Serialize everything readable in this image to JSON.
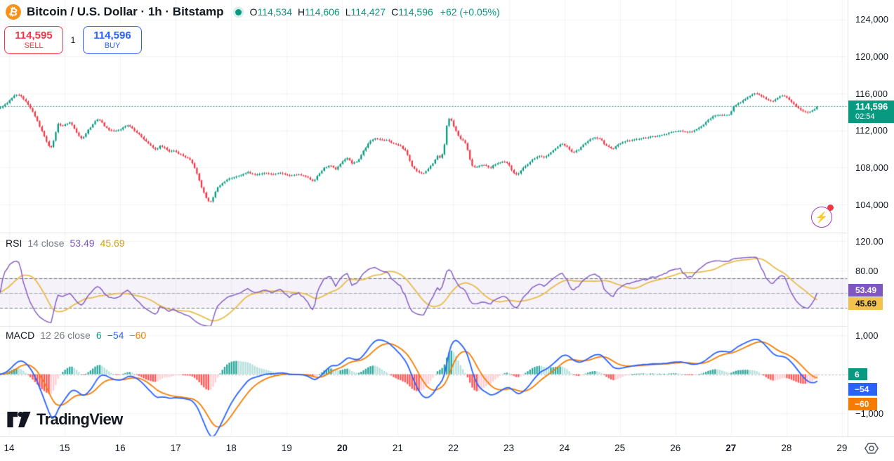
{
  "header": {
    "symbol_title": "Bitcoin / U.S. Dollar · 1h · Bitstamp",
    "ohlc": {
      "o_label": "O",
      "o": "114,534",
      "h_label": "H",
      "h": "114,606",
      "l_label": "L",
      "l": "114,427",
      "c_label": "C",
      "c": "114,596",
      "change": "+62 (+0.05%)"
    },
    "sell_button": {
      "price": "114,595",
      "label": "SELL"
    },
    "spread": "1",
    "buy_button": {
      "price": "114,596",
      "label": "BUY"
    }
  },
  "price_axis": {
    "labels": [
      {
        "value": 124000,
        "text": "124,000"
      },
      {
        "value": 120000,
        "text": "120,000"
      },
      {
        "value": 116000,
        "text": "116,000"
      },
      {
        "value": 112000,
        "text": "112,000"
      },
      {
        "value": 108000,
        "text": "108,000"
      },
      {
        "value": 104000,
        "text": "104,000"
      }
    ],
    "current_badge": {
      "price": "114,596",
      "countdown": "02:54"
    }
  },
  "time_axis": {
    "labels": [
      {
        "day": 14,
        "text": "14",
        "bold": false
      },
      {
        "day": 15,
        "text": "15",
        "bold": false
      },
      {
        "day": 16,
        "text": "16",
        "bold": false
      },
      {
        "day": 17,
        "text": "17",
        "bold": false
      },
      {
        "day": 18,
        "text": "18",
        "bold": false
      },
      {
        "day": 19,
        "text": "19",
        "bold": false
      },
      {
        "day": 20,
        "text": "20",
        "bold": true
      },
      {
        "day": 21,
        "text": "21",
        "bold": false
      },
      {
        "day": 22,
        "text": "22",
        "bold": false
      },
      {
        "day": 23,
        "text": "23",
        "bold": false
      },
      {
        "day": 24,
        "text": "24",
        "bold": false
      },
      {
        "day": 25,
        "text": "25",
        "bold": false
      },
      {
        "day": 26,
        "text": "26",
        "bold": false
      },
      {
        "day": 27,
        "text": "27",
        "bold": true
      },
      {
        "day": 28,
        "text": "28",
        "bold": false
      },
      {
        "day": 29,
        "text": "29",
        "bold": false
      }
    ]
  },
  "rsi_panel": {
    "title": "RSI",
    "params": "14 close",
    "value_main": "53.49",
    "value_ma": "45.69",
    "axis_labels": [
      {
        "value": 120,
        "text": "120.00"
      },
      {
        "value": 80,
        "text": "80.00"
      }
    ]
  },
  "macd_panel": {
    "title": "MACD",
    "params": "12 26 close",
    "hist_value": "6",
    "macd_value": "−54",
    "signal_value": "−60",
    "axis_labels": [
      {
        "value": 1000,
        "text": "1,000"
      },
      {
        "value": -1000,
        "text": "−1,000"
      }
    ]
  },
  "watermark": "TradingView",
  "colors": {
    "candle_up": "#089981",
    "candle_down": "#F23645",
    "current_price_line": "#089981",
    "rsi_line": "#7E57C2",
    "rsi_ma_line": "#E8BC4A",
    "rsi_band_fill": "rgba(126,87,194,0.08)",
    "macd_line": "#2962FF",
    "signal_line": "#F57C00",
    "hist_up_strong": "#26A69A",
    "hist_up_weak": "#B2DFDB",
    "hist_down_strong": "#FF5252",
    "hist_down_weak": "#FFCDD2",
    "grid": "rgba(42,46,57,0.06)",
    "separator": "#E0E3EB",
    "text_dark": "#131722",
    "text_gray": "#787B86"
  },
  "chart_data": [
    {
      "type": "candlestick",
      "symbol": "Bitcoin / U.S. Dollar",
      "exchange": "Bitstamp",
      "interval": "1h",
      "candle_interval_hours": 1,
      "x_domain_days": [
        13.84,
        29.07
      ],
      "price_ylim_visible": [
        101000,
        126100
      ],
      "current_price": 114596,
      "ohlc_last": {
        "open": 114534,
        "high": 114606,
        "low": 114427,
        "close": 114596,
        "change": 62,
        "change_pct": 0.05
      },
      "close_waypoints": [
        [
          13.84,
          114450
        ],
        [
          13.95,
          114900
        ],
        [
          14.05,
          115550
        ],
        [
          14.12,
          115900
        ],
        [
          14.2,
          115750
        ],
        [
          14.3,
          115100
        ],
        [
          14.42,
          114100
        ],
        [
          14.52,
          112800
        ],
        [
          14.62,
          111500
        ],
        [
          14.7,
          110400
        ],
        [
          14.76,
          110150
        ],
        [
          14.82,
          111300
        ],
        [
          14.88,
          112750
        ],
        [
          14.95,
          112500
        ],
        [
          15.02,
          112650
        ],
        [
          15.1,
          112900
        ],
        [
          15.18,
          112100
        ],
        [
          15.25,
          111400
        ],
        [
          15.32,
          111100
        ],
        [
          15.4,
          111900
        ],
        [
          15.5,
          112600
        ],
        [
          15.58,
          113200
        ],
        [
          15.65,
          113050
        ],
        [
          15.72,
          112400
        ],
        [
          15.8,
          112050
        ],
        [
          15.9,
          111900
        ],
        [
          16.0,
          112100
        ],
        [
          16.08,
          112450
        ],
        [
          16.15,
          112600
        ],
        [
          16.25,
          112000
        ],
        [
          16.35,
          111500
        ],
        [
          16.45,
          110900
        ],
        [
          16.55,
          110350
        ],
        [
          16.65,
          109900
        ],
        [
          16.72,
          110400
        ],
        [
          16.8,
          110100
        ],
        [
          16.88,
          109700
        ],
        [
          16.95,
          109850
        ],
        [
          17.05,
          109500
        ],
        [
          17.15,
          109200
        ],
        [
          17.25,
          108900
        ],
        [
          17.32,
          108300
        ],
        [
          17.4,
          107000
        ],
        [
          17.48,
          105600
        ],
        [
          17.55,
          104700
        ],
        [
          17.62,
          104150
        ],
        [
          17.68,
          104900
        ],
        [
          17.75,
          105800
        ],
        [
          17.85,
          106400
        ],
        [
          17.95,
          106800
        ],
        [
          18.05,
          106900
        ],
        [
          18.15,
          107100
        ],
        [
          18.3,
          107500
        ],
        [
          18.45,
          107200
        ],
        [
          18.6,
          107400
        ],
        [
          18.75,
          107250
        ],
        [
          18.9,
          107400
        ],
        [
          19.05,
          107100
        ],
        [
          19.2,
          107250
        ],
        [
          19.35,
          107000
        ],
        [
          19.48,
          106500
        ],
        [
          19.58,
          107300
        ],
        [
          19.68,
          108000
        ],
        [
          19.78,
          108200
        ],
        [
          19.88,
          107800
        ],
        [
          19.98,
          108500
        ],
        [
          20.08,
          109100
        ],
        [
          20.18,
          108400
        ],
        [
          20.28,
          108700
        ],
        [
          20.38,
          109800
        ],
        [
          20.48,
          110700
        ],
        [
          20.58,
          111200
        ],
        [
          20.7,
          111000
        ],
        [
          20.82,
          110900
        ],
        [
          20.95,
          110500
        ],
        [
          21.05,
          110300
        ],
        [
          21.15,
          109700
        ],
        [
          21.25,
          108200
        ],
        [
          21.35,
          107500
        ],
        [
          21.45,
          107300
        ],
        [
          21.55,
          107900
        ],
        [
          21.65,
          108600
        ],
        [
          21.72,
          109300
        ],
        [
          21.78,
          108900
        ],
        [
          21.84,
          110500
        ],
        [
          21.9,
          113350
        ],
        [
          21.96,
          113100
        ],
        [
          22.02,
          112300
        ],
        [
          22.08,
          111500
        ],
        [
          22.14,
          111000
        ],
        [
          22.2,
          110900
        ],
        [
          22.26,
          109800
        ],
        [
          22.32,
          108300
        ],
        [
          22.4,
          108000
        ],
        [
          22.5,
          108300
        ],
        [
          22.58,
          108200
        ],
        [
          22.66,
          107900
        ],
        [
          22.74,
          108300
        ],
        [
          22.82,
          108500
        ],
        [
          22.9,
          108700
        ],
        [
          23.0,
          108300
        ],
        [
          23.08,
          107400
        ],
        [
          23.15,
          107200
        ],
        [
          23.25,
          107900
        ],
        [
          23.35,
          108400
        ],
        [
          23.45,
          109000
        ],
        [
          23.55,
          109200
        ],
        [
          23.65,
          109100
        ],
        [
          23.75,
          109600
        ],
        [
          23.85,
          110100
        ],
        [
          23.95,
          110600
        ],
        [
          24.05,
          110200
        ],
        [
          24.15,
          109600
        ],
        [
          24.25,
          109900
        ],
        [
          24.35,
          110500
        ],
        [
          24.45,
          111000
        ],
        [
          24.55,
          111250
        ],
        [
          24.65,
          111100
        ],
        [
          24.72,
          110500
        ],
        [
          24.8,
          110200
        ],
        [
          24.88,
          110000
        ],
        [
          24.95,
          110400
        ],
        [
          25.05,
          110700
        ],
        [
          25.15,
          110900
        ],
        [
          25.3,
          111050
        ],
        [
          25.45,
          111200
        ],
        [
          25.6,
          111350
        ],
        [
          25.75,
          111500
        ],
        [
          25.9,
          111750
        ],
        [
          26.0,
          111900
        ],
        [
          26.1,
          111950
        ],
        [
          26.2,
          111800
        ],
        [
          26.3,
          111900
        ],
        [
          26.4,
          112200
        ],
        [
          26.5,
          112600
        ],
        [
          26.6,
          113200
        ],
        [
          26.7,
          113600
        ],
        [
          26.8,
          113700
        ],
        [
          26.9,
          113650
        ],
        [
          26.98,
          113750
        ],
        [
          27.05,
          114600
        ],
        [
          27.12,
          114900
        ],
        [
          27.2,
          115150
        ],
        [
          27.28,
          115500
        ],
        [
          27.36,
          115800
        ],
        [
          27.44,
          116100
        ],
        [
          27.5,
          115900
        ],
        [
          27.58,
          115600
        ],
        [
          27.66,
          115300
        ],
        [
          27.74,
          115100
        ],
        [
          27.82,
          115450
        ],
        [
          27.9,
          115750
        ],
        [
          27.98,
          115700
        ],
        [
          28.06,
          115200
        ],
        [
          28.14,
          114800
        ],
        [
          28.22,
          114400
        ],
        [
          28.3,
          114100
        ],
        [
          28.38,
          113950
        ],
        [
          28.46,
          114150
        ],
        [
          28.52,
          114350
        ],
        [
          28.585,
          114596
        ]
      ]
    },
    {
      "type": "line",
      "name": "RSI",
      "params": {
        "length": 14,
        "source": "close",
        "ma_length": 14
      },
      "last_values": {
        "rsi": 53.49,
        "ma": 45.69
      },
      "bands": {
        "upper": 70,
        "middle": 50,
        "lower": 30
      },
      "ylim_visible": [
        11,
        130
      ]
    },
    {
      "type": "macd",
      "name": "MACD",
      "params": {
        "fast": 12,
        "slow": 26,
        "signal": 9,
        "source": "close"
      },
      "last_values": {
        "hist": 6,
        "macd": -54,
        "signal": -60
      },
      "ylim_visible": [
        -1590,
        1230
      ]
    }
  ]
}
